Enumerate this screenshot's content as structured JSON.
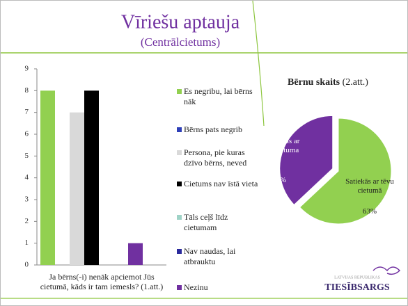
{
  "slide": {
    "title": "Vīriešu aptauja",
    "subtitle": "(Centrālcietums)",
    "logo_small": "LATVIJAS REPUBLIKAS",
    "logo": "TIESĪBSARGS"
  },
  "chart_data": [
    {
      "type": "bar",
      "categories": [
        "Ja bērns(-i) nenāk apciemot Jūs cietumā, kāds ir tam iemesls? (1.att.)"
      ],
      "series": [
        {
          "name": "Es negribu, lai bērns nāk",
          "color": "#92d050",
          "values": [
            8
          ]
        },
        {
          "name": "Bērns pats negrib",
          "color": "#2e3fb8",
          "values": [
            0
          ]
        },
        {
          "name": "Persona, pie kuras dzīvo bērns, neved",
          "color": "#d9d9d9",
          "values": [
            7
          ]
        },
        {
          "name": "Cietums nav īstā vieta",
          "color": "#000000",
          "values": [
            8
          ]
        },
        {
          "name": "Tāls ceļš līdz cietumam",
          "color": "#9fd3c7",
          "values": [
            0
          ]
        },
        {
          "name": "Nav naudas, lai atbrauktu",
          "color": "#2a2a9c",
          "values": [
            0
          ]
        },
        {
          "name": "Nezinu",
          "color": "#7030a0",
          "values": [
            1
          ]
        }
      ],
      "ylim": [
        0,
        9
      ],
      "yticks": [
        0,
        1,
        2,
        3,
        4,
        5,
        6,
        7,
        8,
        9
      ],
      "legend": "right"
    },
    {
      "type": "pie",
      "title": "Bērnu skaits",
      "subtitle": "(2.att.)",
      "categories": [
        "Satiekās ar tēvu cietumā",
        "Nesatiekās ar tēvu cietuma"
      ],
      "values": [
        63,
        37
      ],
      "value_labels": [
        "63%",
        "37%"
      ],
      "colors": [
        "#92d050",
        "#7030a0"
      ]
    }
  ]
}
